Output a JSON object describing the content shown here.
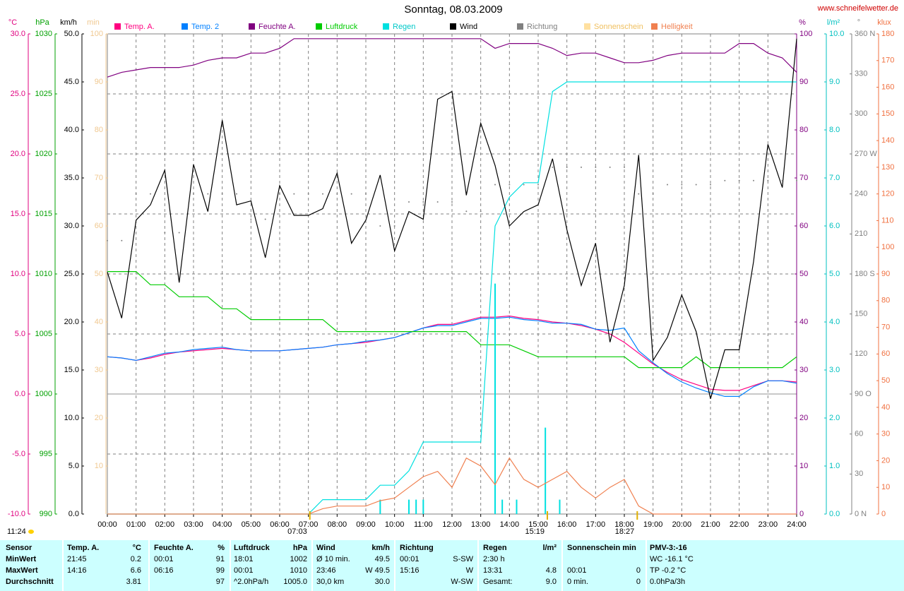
{
  "chart_data": {
    "type": "line",
    "title": "Sonntag, 08.03.2009",
    "site": "www.schneifelwetter.de",
    "day_length": "11:24",
    "xlim": [
      0,
      24
    ],
    "xticks": [
      {
        "value": 0,
        "label": "00:00"
      },
      {
        "value": 1,
        "label": "01:00"
      },
      {
        "value": 2,
        "label": "02:00"
      },
      {
        "value": 3,
        "label": "03:00"
      },
      {
        "value": 4,
        "label": "04:00"
      },
      {
        "value": 5,
        "label": "05:00"
      },
      {
        "value": 6,
        "label": "06:00"
      },
      {
        "value": 7,
        "label": "07:00"
      },
      {
        "value": 8,
        "label": "08:00"
      },
      {
        "value": 9,
        "label": "09:00"
      },
      {
        "value": 10,
        "label": "10:00"
      },
      {
        "value": 11,
        "label": "11:00"
      },
      {
        "value": 12,
        "label": "12:00"
      },
      {
        "value": 13,
        "label": "13:00"
      },
      {
        "value": 14,
        "label": "14:00"
      },
      {
        "value": 15,
        "label": "15:00"
      },
      {
        "value": 16,
        "label": "16:00"
      },
      {
        "value": 17,
        "label": "17:00"
      },
      {
        "value": 18,
        "label": "18:00"
      },
      {
        "value": 19,
        "label": "19:00"
      },
      {
        "value": 20,
        "label": "20:00"
      },
      {
        "value": 21,
        "label": "21:00"
      },
      {
        "value": 22,
        "label": "22:00"
      },
      {
        "value": 23,
        "label": "23:00"
      },
      {
        "value": 24,
        "label": "24:00"
      }
    ],
    "grid": true,
    "grid_axis": "temp",
    "axes": {
      "temp": {
        "unit": "°C",
        "color": "#e0007f",
        "lim": [
          -10,
          30
        ],
        "ticks": [
          {
            "value": 30,
            "label": "30.0"
          },
          {
            "value": 25,
            "label": "25.0"
          },
          {
            "value": 20,
            "label": "20.0"
          },
          {
            "value": 15,
            "label": "15.0"
          },
          {
            "value": 10,
            "label": "10.0"
          },
          {
            "value": 5,
            "label": "5.0"
          },
          {
            "value": 0,
            "label": "0.0"
          },
          {
            "value": -5,
            "label": "-5.0"
          },
          {
            "value": -10,
            "label": "-10.0"
          }
        ]
      },
      "pressure": {
        "unit": "hPa",
        "color": "#00a000",
        "lim": [
          990,
          1030
        ],
        "ticks": [
          1030,
          1025,
          1020,
          1015,
          1010,
          1005,
          1000,
          995,
          990
        ]
      },
      "wind": {
        "unit": "km/h",
        "color": "#000000",
        "lim": [
          0,
          50
        ],
        "ticks": [
          {
            "value": 50,
            "label": "50.0"
          },
          {
            "value": 45,
            "label": "45.0"
          },
          {
            "value": 40,
            "label": "40.0"
          },
          {
            "value": 35,
            "label": "35.0"
          },
          {
            "value": 30,
            "label": "30.0"
          },
          {
            "value": 25,
            "label": "25.0"
          },
          {
            "value": 20,
            "label": "20.0"
          },
          {
            "value": 15,
            "label": "15.0"
          },
          {
            "value": 10,
            "label": "10.0"
          },
          {
            "value": 5,
            "label": "5.0"
          },
          {
            "value": 0,
            "label": "0.0"
          }
        ]
      },
      "sun": {
        "unit": "min",
        "color": "#f0c890",
        "lim": [
          0,
          100
        ],
        "ticks": [
          100,
          90,
          80,
          70,
          60,
          50,
          40,
          30,
          20,
          10
        ]
      },
      "humidity": {
        "unit": "%",
        "color": "#800080",
        "lim": [
          0,
          100
        ],
        "ticks": [
          100,
          90,
          80,
          70,
          60,
          50,
          40,
          30,
          20,
          10,
          0
        ]
      },
      "rain": {
        "unit": "l/m²",
        "color": "#00c0c0",
        "lim": [
          0,
          10
        ],
        "ticks": [
          {
            "value": 10,
            "label": "10.0"
          },
          {
            "value": 9,
            "label": "9.0"
          },
          {
            "value": 8,
            "label": "8.0"
          },
          {
            "value": 7,
            "label": "7.0"
          },
          {
            "value": 6,
            "label": "6.0"
          },
          {
            "value": 5,
            "label": "5.0"
          },
          {
            "value": 4,
            "label": "4.0"
          },
          {
            "value": 3,
            "label": "3.0"
          },
          {
            "value": 2,
            "label": "2.0"
          },
          {
            "value": 1,
            "label": "1.0"
          },
          {
            "value": 0,
            "label": "0.0"
          }
        ]
      },
      "direction": {
        "unit": "°",
        "color": "#808080",
        "lim": [
          0,
          360
        ],
        "ticks": [
          {
            "value": 360,
            "label": "360 N"
          },
          {
            "value": 330,
            "label": "330"
          },
          {
            "value": 300,
            "label": "300"
          },
          {
            "value": 270,
            "label": "270 W"
          },
          {
            "value": 240,
            "label": "240"
          },
          {
            "value": 210,
            "label": "210"
          },
          {
            "value": 180,
            "label": "180 S"
          },
          {
            "value": 150,
            "label": "150"
          },
          {
            "value": 120,
            "label": "120"
          },
          {
            "value": 90,
            "label": "90 O"
          },
          {
            "value": 60,
            "label": "60"
          },
          {
            "value": 30,
            "label": "30"
          },
          {
            "value": 0,
            "label": "0 N"
          }
        ]
      },
      "light": {
        "unit": "klux",
        "color": "#f07040",
        "lim": [
          0,
          180
        ],
        "ticks": [
          180,
          170,
          160,
          150,
          140,
          130,
          120,
          110,
          100,
          90,
          80,
          70,
          60,
          50,
          40,
          30,
          20,
          10,
          0
        ]
      }
    },
    "x": [
      0,
      0.5,
      1,
      1.5,
      2,
      2.5,
      3,
      3.5,
      4,
      4.5,
      5,
      5.5,
      6,
      6.5,
      7,
      7.5,
      8,
      8.5,
      9,
      9.5,
      10,
      10.5,
      11,
      11.5,
      12,
      12.5,
      13,
      13.5,
      14,
      14.5,
      15,
      15.5,
      16,
      16.5,
      17,
      17.5,
      18,
      18.5,
      19,
      19.5,
      20,
      20.5,
      21,
      21.5,
      22,
      22.5,
      23,
      23.5,
      24
    ],
    "series": [
      {
        "name": "Temp. A.",
        "color": "#ff0080",
        "axis": "temp",
        "values": [
          3.1,
          3.0,
          2.8,
          3.0,
          3.3,
          3.5,
          3.6,
          3.7,
          3.8,
          3.7,
          3.6,
          3.6,
          3.6,
          3.7,
          3.8,
          3.9,
          4.1,
          4.2,
          4.3,
          4.5,
          4.7,
          5.1,
          5.5,
          5.8,
          5.8,
          6.1,
          6.4,
          6.4,
          6.5,
          6.3,
          6.2,
          6.0,
          5.9,
          5.7,
          5.4,
          5.0,
          4.3,
          3.4,
          2.5,
          1.8,
          1.2,
          0.8,
          0.4,
          0.3,
          0.3,
          0.7,
          1.1,
          1.1,
          1.0
        ]
      },
      {
        "name": "Temp. 2",
        "color": "#0080ff",
        "axis": "temp",
        "values": [
          3.1,
          3.0,
          2.8,
          3.1,
          3.4,
          3.5,
          3.7,
          3.8,
          3.9,
          3.7,
          3.6,
          3.6,
          3.6,
          3.7,
          3.8,
          3.9,
          4.1,
          4.2,
          4.4,
          4.5,
          4.7,
          5.1,
          5.5,
          5.7,
          5.7,
          6.0,
          6.3,
          6.3,
          6.4,
          6.2,
          6.1,
          5.9,
          5.9,
          5.8,
          5.4,
          5.3,
          5.5,
          3.6,
          2.6,
          1.7,
          1.0,
          0.5,
          0.1,
          -0.2,
          -0.2,
          0.6,
          1.1,
          1.1,
          0.9
        ]
      },
      {
        "name": "Feuchte A.",
        "color": "#800080",
        "axis": "humidity",
        "values": [
          91,
          92,
          92.5,
          93,
          93,
          93,
          93.5,
          94.5,
          95,
          95,
          96,
          96,
          97,
          99,
          99,
          99,
          99,
          99,
          99,
          99,
          99,
          99,
          99,
          99,
          99,
          99,
          99,
          97,
          98,
          98,
          98,
          97,
          95.5,
          96,
          96,
          95,
          94,
          94,
          94.5,
          95.5,
          96,
          96,
          96,
          96,
          98,
          98,
          96,
          95,
          92
        ]
      },
      {
        "name": "Luftdruck",
        "color": "#00cc00",
        "axis": "pressure",
        "values": [
          1010.2,
          1010.2,
          1010.2,
          1009.1,
          1009.1,
          1008.1,
          1008.1,
          1008.1,
          1007.1,
          1007.1,
          1006.2,
          1006.2,
          1006.2,
          1006.2,
          1006.2,
          1006.2,
          1005.2,
          1005.2,
          1005.2,
          1005.2,
          1005.2,
          1005.2,
          1005.2,
          1005.2,
          1005.2,
          1005.2,
          1004.1,
          1004.1,
          1004.1,
          1003.6,
          1003.1,
          1003.1,
          1003.1,
          1003.1,
          1003.1,
          1003.1,
          1003.1,
          1002.2,
          1002.2,
          1002.2,
          1002.2,
          1003.1,
          1002.2,
          1002.2,
          1002.2,
          1002.2,
          1002.2,
          1002.2,
          1003.1
        ]
      },
      {
        "name": "Regen",
        "color": "#00e0e0",
        "axis": "rain",
        "values": [
          0,
          0,
          0,
          0,
          0,
          0,
          0,
          0,
          0,
          0,
          0,
          0,
          0,
          0,
          0,
          0.3,
          0.3,
          0.3,
          0.3,
          0.6,
          0.6,
          0.9,
          1.5,
          1.5,
          1.5,
          1.5,
          1.5,
          6.0,
          6.6,
          6.9,
          6.9,
          8.8,
          9.0,
          9.0,
          9.0,
          9.0,
          9.0,
          9.0,
          9.0,
          9.0,
          9.0,
          9.0,
          9.0,
          9.0,
          9.0,
          9.0,
          9.0,
          9.0,
          9.0
        ],
        "bars": {
          "x": [
            9.5,
            10.5,
            10.75,
            11.0,
            13.5,
            13.75,
            14.25,
            15.25,
            15.75
          ],
          "values": [
            0.3,
            0.3,
            0.3,
            0.3,
            4.8,
            0.3,
            0.3,
            1.8,
            0.3
          ]
        }
      },
      {
        "name": "Wind",
        "color": "#000000",
        "axis": "wind",
        "values": [
          25.2,
          20.4,
          30.6,
          32.2,
          35.8,
          24.1,
          36.4,
          31.5,
          41.0,
          32.2,
          32.6,
          26.7,
          34.2,
          31.1,
          31.1,
          31.8,
          35.5,
          28.2,
          30.6,
          35.3,
          27.4,
          31.5,
          30.7,
          43.2,
          44.0,
          33.2,
          40.7,
          36.3,
          30.0,
          31.5,
          32.2,
          37.0,
          29.6,
          23.8,
          28.2,
          17.9,
          23.8,
          37.4,
          16.0,
          18.4,
          22.8,
          19.0,
          12.0,
          17.1,
          17.1,
          26.3,
          38.5,
          34.0,
          49.5
        ]
      },
      {
        "name": "Richtung",
        "color": "#808080",
        "axis": "direction",
        "mark": "dots",
        "values": [
          205,
          205,
          240,
          240,
          211,
          211,
          240,
          240,
          240,
          240,
          221,
          221,
          240,
          240,
          240,
          240,
          240,
          240,
          240,
          216,
          216,
          234,
          234,
          234,
          234,
          227,
          227,
          247,
          247,
          247,
          247,
          260,
          260,
          260,
          260,
          260,
          260,
          240,
          240,
          247,
          247,
          247,
          247,
          250,
          250,
          250,
          250,
          250,
          250
        ]
      },
      {
        "name": "Sonnenschein",
        "color": "#ffe0a0",
        "axis": "sun"
      },
      {
        "name": "Helligkeit",
        "color": "#f08050",
        "axis": "light",
        "values": [
          0,
          0,
          0,
          0,
          0,
          0,
          0,
          0,
          0,
          0,
          0,
          0,
          0,
          0,
          0,
          2,
          3,
          3,
          3,
          5,
          6,
          10,
          14,
          16,
          10,
          21,
          18,
          11,
          21,
          13,
          10,
          13,
          16,
          10,
          6,
          10,
          13,
          3,
          0,
          0,
          0,
          0,
          0,
          0,
          0,
          0,
          0,
          0,
          0
        ]
      }
    ],
    "sun_marks": [
      {
        "value": 7.05,
        "label": "07:03"
      },
      {
        "value": 15.32,
        "label": "15:19"
      },
      {
        "value": 18.45,
        "label": "18:27"
      }
    ]
  },
  "table": {
    "row_header": "Sensor",
    "row_labels": [
      "MinWert",
      "MaxWert",
      "Durchschnitt"
    ],
    "sections": [
      {
        "header": "Temp. A.",
        "unit": "°C",
        "rows": [
          {
            "left": "21:45",
            "right": "0.2"
          },
          {
            "left": "14:16",
            "right": "6.6"
          },
          {
            "right": "3.81"
          }
        ]
      },
      {
        "header": "Feuchte A.",
        "unit": "%",
        "rows": [
          {
            "left": "00:01",
            "right": "91"
          },
          {
            "left": "06:16",
            "right": "99"
          },
          {
            "right": "97"
          }
        ]
      },
      {
        "header": "Luftdruck",
        "unit": "hPa",
        "rows": [
          {
            "left": "18:01",
            "right": "1002"
          },
          {
            "left": "00:01",
            "right": "1010"
          },
          {
            "left": "^2.0hPa/h",
            "right": "1005.0"
          }
        ]
      },
      {
        "header": "Wind",
        "unit": "km/h",
        "rows": [
          {
            "left": "Ø 10 min.",
            "right": "49.5"
          },
          {
            "left": "23:46",
            "right": "W 49.5"
          },
          {
            "left": "30,0 km",
            "right": "30.0"
          }
        ]
      },
      {
        "header": "Richtung",
        "rows": [
          {
            "left": "00:01",
            "right": "S-SW"
          },
          {
            "left": "15:16",
            "right": "W"
          },
          {
            "right": "W-SW"
          }
        ]
      },
      {
        "header": "Regen",
        "unit": "l/m²",
        "rows": [
          {
            "left": "2:30 h"
          },
          {
            "left": "13:31",
            "right": "4.8"
          },
          {
            "left": "Gesamt:",
            "right": "9.0"
          }
        ]
      },
      {
        "header": "Sonnenschein min",
        "rows": [
          {},
          {
            "left": "00:01",
            "right": "0"
          },
          {
            "left": "0 min.",
            "right": "0"
          }
        ]
      },
      {
        "header": "PMV-3:-16",
        "rows": [
          {
            "left": "WC -16.1 °C"
          },
          {
            "left": "TP -0.2 °C"
          },
          {
            "left": "0.0hPa/3h"
          }
        ]
      }
    ]
  }
}
